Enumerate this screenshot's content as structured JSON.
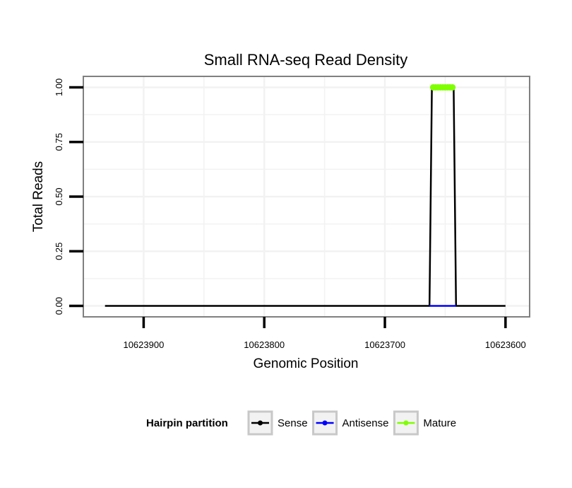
{
  "chart_data": {
    "type": "line",
    "title": "Small RNA-seq Read Density",
    "xlabel": "Genomic Position",
    "ylabel": "Total Reads",
    "x_reversed": true,
    "xlim": [
      10623950,
      10623580
    ],
    "ylim": [
      -0.05,
      1.05
    ],
    "x_ticks": [
      10623900,
      10623800,
      10623700,
      10623600
    ],
    "x_tick_labels": [
      "10623900",
      "10623800",
      "10623700",
      "10623600"
    ],
    "y_ticks": [
      0,
      0.25,
      0.5,
      0.75,
      1.0
    ],
    "y_tick_labels": [
      "0.00",
      "0.25",
      "0.50",
      "0.75",
      "1.00"
    ],
    "grid": true,
    "legend": {
      "title": "Hairpin partition",
      "position": "bottom",
      "entries": [
        {
          "label": "Sense",
          "color": "#000000"
        },
        {
          "label": "Antisense",
          "color": "#0000ff"
        },
        {
          "label": "Mature",
          "color": "#7fff00"
        }
      ]
    },
    "series": [
      {
        "name": "Sense",
        "color": "#000000",
        "x": [
          10623932,
          10623663,
          10623661,
          10623643,
          10623641,
          10623600
        ],
        "y": [
          0,
          0,
          1,
          1,
          0,
          0
        ]
      },
      {
        "name": "Antisense",
        "color": "#0000ff",
        "x": [
          10623663,
          10623641
        ],
        "y": [
          0,
          0
        ]
      },
      {
        "name": "Mature",
        "color": "#7fff00",
        "x": [
          10623660,
          10623658,
          10623656,
          10623654,
          10623652,
          10623650,
          10623648,
          10623646,
          10623644
        ],
        "y": [
          1,
          1,
          1,
          1,
          1,
          1,
          1,
          1,
          1
        ]
      }
    ]
  }
}
